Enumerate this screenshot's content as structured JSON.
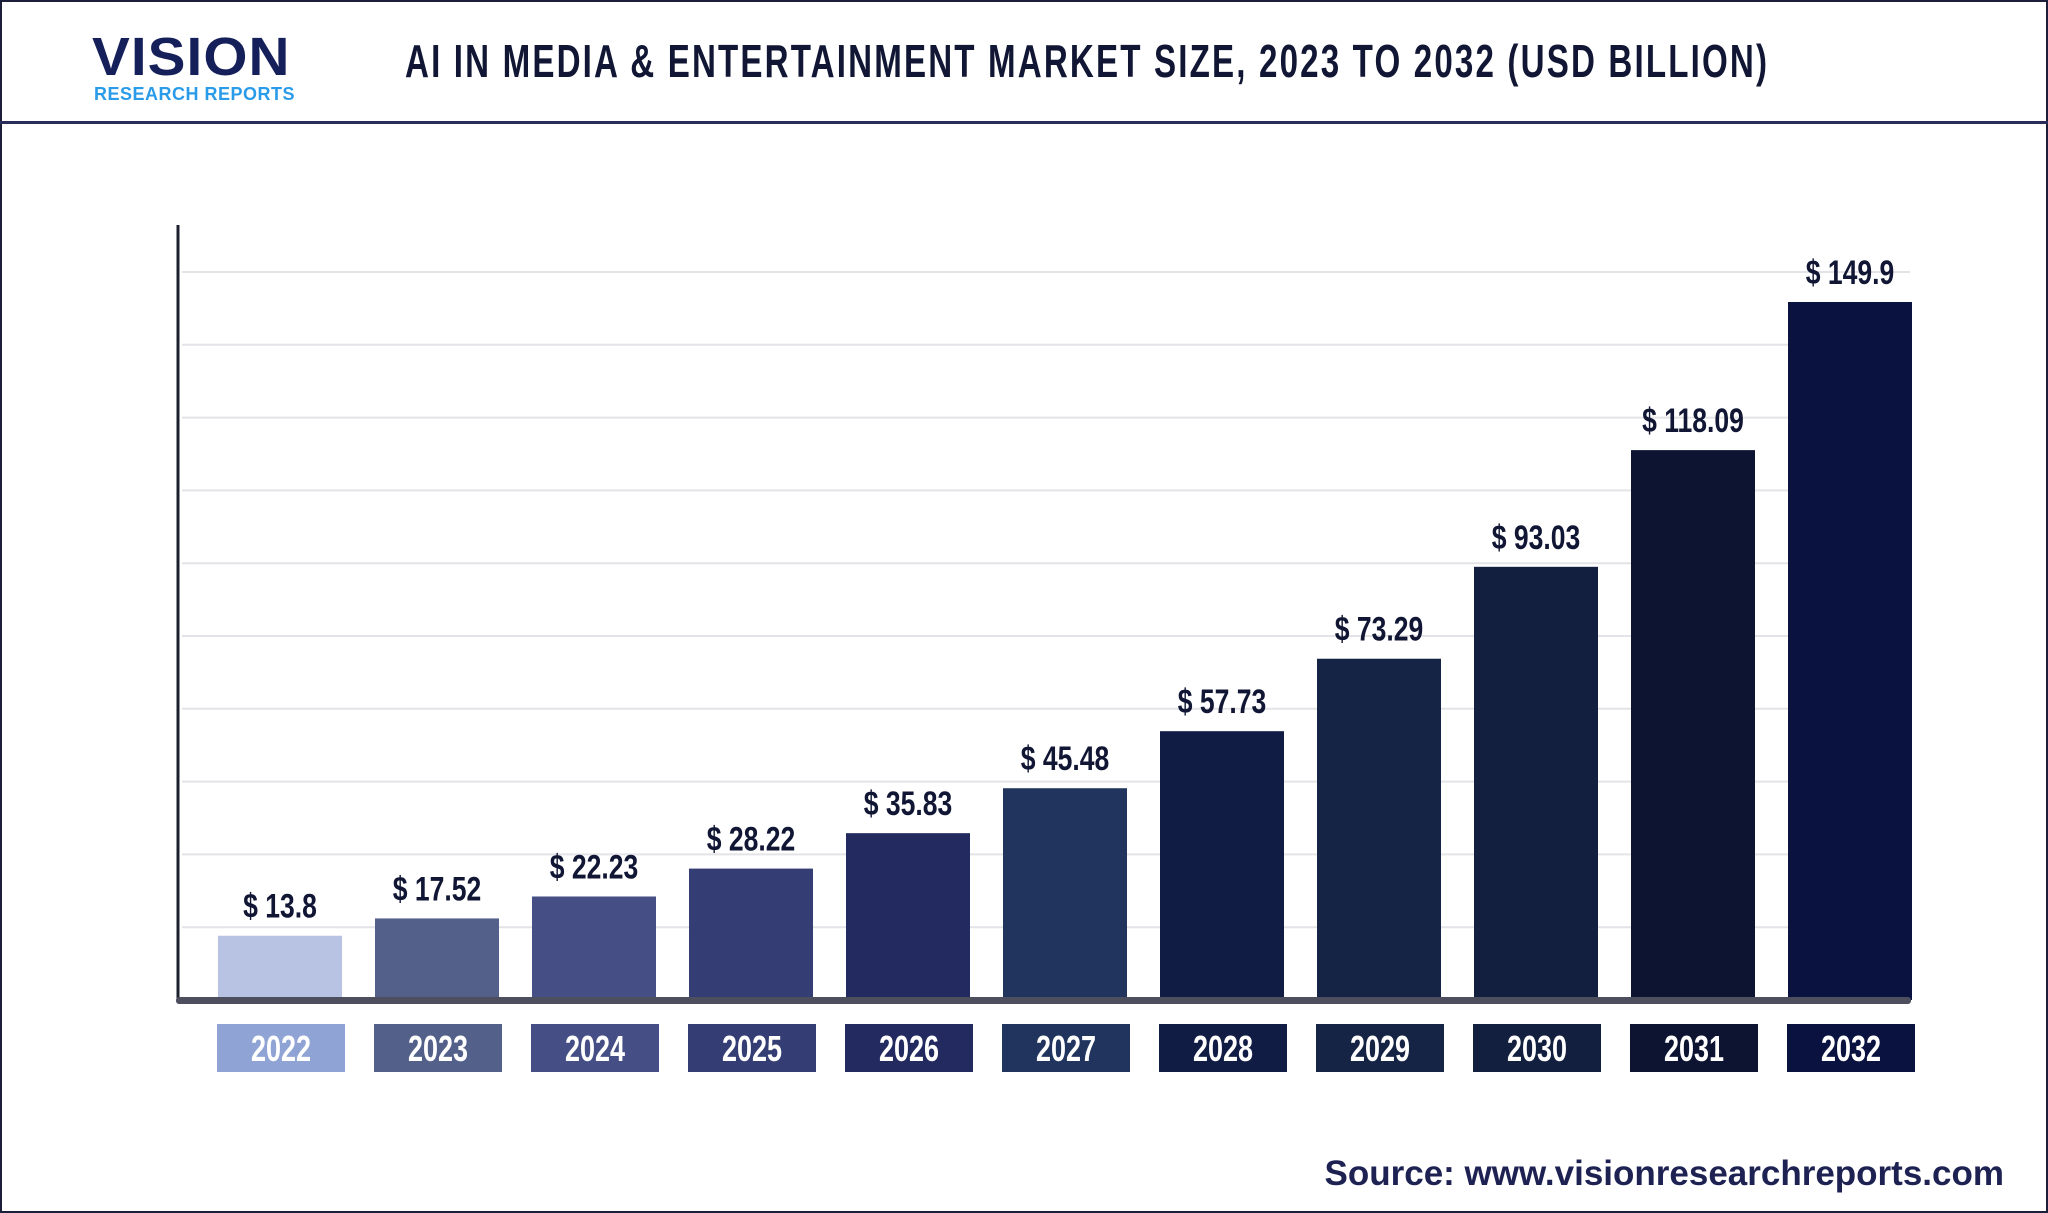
{
  "header": {
    "logo_text": "VISION",
    "logo_subtext": "RESEARCH REPORTS",
    "title": "AI IN MEDIA & ENTERTAINMENT MARKET SIZE, 2023 TO 2032 (USD BILLION)"
  },
  "chart_data": {
    "type": "bar",
    "title": "AI IN MEDIA & ENTERTAINMENT MARKET SIZE, 2023 TO 2032 (USD BILLION)",
    "categories": [
      "2022",
      "2023",
      "2024",
      "2025",
      "2026",
      "2027",
      "2028",
      "2029",
      "2030",
      "2031",
      "2032"
    ],
    "values": [
      13.8,
      17.52,
      22.23,
      28.22,
      35.83,
      45.48,
      57.73,
      73.29,
      93.03,
      118.09,
      149.9
    ],
    "data_labels": [
      "$ 13.8",
      "$ 17.52",
      "$ 22.23",
      "$ 28.22",
      "$ 35.83",
      "$ 45.48",
      "$ 57.73",
      "$ 73.29",
      "$ 93.03",
      "$ 118.09",
      "$ 149.9"
    ],
    "bar_colors": [
      "#b8c2e2",
      "#536089",
      "#454f85",
      "#343e74",
      "#232a60",
      "#20345e",
      "#111c44",
      "#152344",
      "#121f3e",
      "#0c1431",
      "#0a1240"
    ],
    "label_box_colors": [
      "#8fa3d4",
      "#536089",
      "#454f85",
      "#343e74",
      "#232a60",
      "#20345e",
      "#111c44",
      "#152344",
      "#121f3e",
      "#0c1431",
      "#0a1240"
    ],
    "xlabel": "",
    "ylabel": "",
    "ylim": [
      0,
      160
    ],
    "grid": true,
    "legend": "none"
  },
  "source": "Source: www.visionresearchreports.com"
}
